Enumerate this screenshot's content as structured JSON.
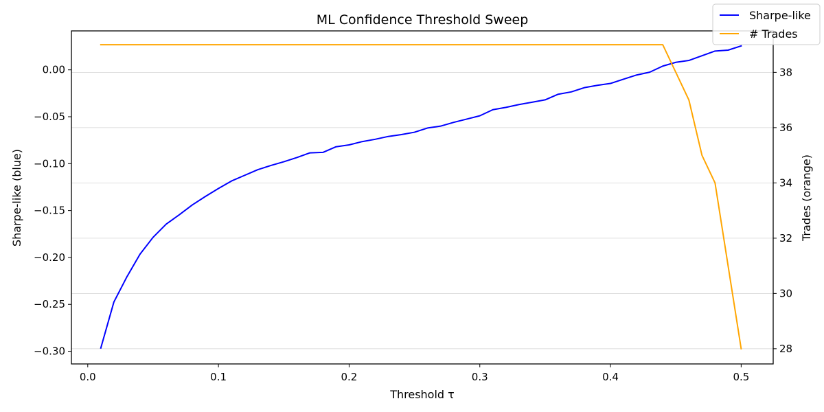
{
  "chart_data": {
    "type": "line",
    "title": "ML Confidence Threshold Sweep",
    "xlabel": "Threshold τ",
    "ylabel_left": "Sharpe-like (blue)",
    "ylabel_right": "Trades (orange)",
    "xlim": [
      -0.0125,
      0.5245
    ],
    "ylim_left": [
      -0.3135,
      0.0415
    ],
    "ylim_right": [
      27.45,
      39.5
    ],
    "x_ticks": [
      0.0,
      0.1,
      0.2,
      0.3,
      0.4,
      0.5
    ],
    "x_tick_labels": [
      "0.0",
      "0.1",
      "0.2",
      "0.3",
      "0.4",
      "0.5"
    ],
    "y_left_ticks": [
      0.0,
      -0.05,
      -0.1,
      -0.15,
      -0.2,
      -0.25,
      -0.3
    ],
    "y_left_tick_labels": [
      "0.00",
      "−0.05",
      "−0.10",
      "−0.15",
      "−0.20",
      "−0.25",
      "−0.30"
    ],
    "y_right_ticks": [
      28,
      30,
      32,
      34,
      36,
      38
    ],
    "y_right_tick_labels": [
      "28",
      "30",
      "32",
      "34",
      "36",
      "38"
    ],
    "grid": "right-axis horizontal",
    "legend_position": "top-right",
    "x": [
      0.01,
      0.02,
      0.03,
      0.04,
      0.05,
      0.06,
      0.07,
      0.08,
      0.09,
      0.1,
      0.11,
      0.12,
      0.13,
      0.14,
      0.15,
      0.16,
      0.17,
      0.18,
      0.19,
      0.2,
      0.21,
      0.22,
      0.23,
      0.24,
      0.25,
      0.26,
      0.27,
      0.28,
      0.29,
      0.3,
      0.31,
      0.32,
      0.33,
      0.34,
      0.35,
      0.36,
      0.37,
      0.38,
      0.39,
      0.4,
      0.41,
      0.42,
      0.43,
      0.44,
      0.45,
      0.46,
      0.47,
      0.48,
      0.49,
      0.5
    ],
    "series": [
      {
        "name": "Sharpe-like",
        "axis": "left",
        "color": "#0000ff",
        "values": [
          -0.2965,
          -0.2475,
          -0.2205,
          -0.1965,
          -0.1785,
          -0.1645,
          -0.1545,
          -0.144,
          -0.135,
          -0.1265,
          -0.1185,
          -0.1125,
          -0.1065,
          -0.102,
          -0.098,
          -0.0935,
          -0.0885,
          -0.088,
          -0.082,
          -0.08,
          -0.0765,
          -0.074,
          -0.071,
          -0.069,
          -0.0665,
          -0.062,
          -0.06,
          -0.056,
          -0.0525,
          -0.049,
          -0.0425,
          -0.04,
          -0.037,
          -0.0345,
          -0.032,
          -0.026,
          -0.0235,
          -0.019,
          -0.0165,
          -0.0145,
          -0.01,
          -0.0055,
          -0.0025,
          0.004,
          0.008,
          0.01,
          0.015,
          0.02,
          0.021,
          0.0255
        ]
      },
      {
        "name": "# Trades",
        "axis": "right",
        "color": "#ffa500",
        "values": [
          39,
          39,
          39,
          39,
          39,
          39,
          39,
          39,
          39,
          39,
          39,
          39,
          39,
          39,
          39,
          39,
          39,
          39,
          39,
          39,
          39,
          39,
          39,
          39,
          39,
          39,
          39,
          39,
          39,
          39,
          39,
          39,
          39,
          39,
          39,
          39,
          39,
          39,
          39,
          39,
          39,
          39,
          39,
          39,
          38,
          37,
          35,
          34,
          31,
          28
        ]
      }
    ]
  }
}
